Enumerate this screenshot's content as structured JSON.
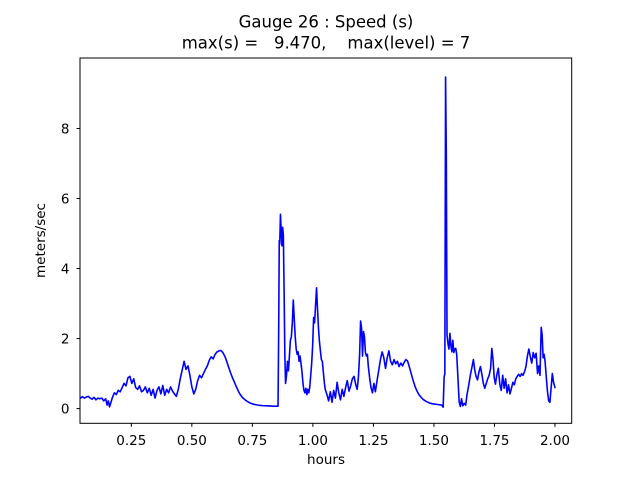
{
  "figure": {
    "title": "Gauge 26 : Speed (s)",
    "subtitle": "max(s) =   9.470,    max(level) = 7",
    "max_s": "9.470",
    "max_level": "7"
  },
  "chart_data": {
    "type": "line",
    "title": "Gauge 26 : Speed (s)",
    "subtitle": "max(s) =   9.470,    max(level) = 7",
    "xlabel": "hours",
    "ylabel": "meters/sec",
    "legend": "none",
    "grid": false,
    "line_color": "#0000ff",
    "line_width": 1.6,
    "xlim": [
      0.038,
      2.069
    ],
    "ylim": [
      -0.42,
      10.014
    ],
    "x_tick_values": [
      0.25,
      0.5,
      0.75,
      1.0,
      1.25,
      1.5,
      1.75,
      2.0
    ],
    "x_tick_labels": [
      "0.25",
      "0.50",
      "0.75",
      "1.00",
      "1.25",
      "1.50",
      "1.75",
      "2.00"
    ],
    "y_tick_values": [
      0,
      2,
      4,
      6,
      8
    ],
    "y_tick_labels": [
      "0",
      "2",
      "4",
      "6",
      "8"
    ],
    "series": [
      {
        "name": "speed",
        "points": [
          [
            0.04,
            0.3
          ],
          [
            0.048,
            0.34
          ],
          [
            0.056,
            0.3
          ],
          [
            0.064,
            0.33
          ],
          [
            0.072,
            0.35
          ],
          [
            0.08,
            0.3
          ],
          [
            0.088,
            0.27
          ],
          [
            0.096,
            0.32
          ],
          [
            0.104,
            0.25
          ],
          [
            0.112,
            0.3
          ],
          [
            0.12,
            0.28
          ],
          [
            0.128,
            0.3
          ],
          [
            0.136,
            0.22
          ],
          [
            0.144,
            0.28
          ],
          [
            0.15,
            0.1
          ],
          [
            0.155,
            0.22
          ],
          [
            0.16,
            0.05
          ],
          [
            0.166,
            0.18
          ],
          [
            0.172,
            0.32
          ],
          [
            0.18,
            0.45
          ],
          [
            0.188,
            0.4
          ],
          [
            0.196,
            0.52
          ],
          [
            0.204,
            0.48
          ],
          [
            0.212,
            0.6
          ],
          [
            0.22,
            0.72
          ],
          [
            0.228,
            0.65
          ],
          [
            0.236,
            0.88
          ],
          [
            0.244,
            0.92
          ],
          [
            0.252,
            0.72
          ],
          [
            0.26,
            0.85
          ],
          [
            0.268,
            0.6
          ],
          [
            0.276,
            0.55
          ],
          [
            0.284,
            0.65
          ],
          [
            0.292,
            0.48
          ],
          [
            0.3,
            0.52
          ],
          [
            0.308,
            0.62
          ],
          [
            0.316,
            0.45
          ],
          [
            0.324,
            0.58
          ],
          [
            0.332,
            0.38
          ],
          [
            0.34,
            0.55
          ],
          [
            0.348,
            0.3
          ],
          [
            0.356,
            0.52
          ],
          [
            0.364,
            0.62
          ],
          [
            0.372,
            0.42
          ],
          [
            0.38,
            0.66
          ],
          [
            0.388,
            0.38
          ],
          [
            0.396,
            0.55
          ],
          [
            0.404,
            0.45
          ],
          [
            0.412,
            0.62
          ],
          [
            0.42,
            0.5
          ],
          [
            0.428,
            0.42
          ],
          [
            0.436,
            0.35
          ],
          [
            0.444,
            0.55
          ],
          [
            0.452,
            0.85
          ],
          [
            0.46,
            1.1
          ],
          [
            0.468,
            1.35
          ],
          [
            0.476,
            1.12
          ],
          [
            0.484,
            1.22
          ],
          [
            0.492,
            0.95
          ],
          [
            0.5,
            0.62
          ],
          [
            0.508,
            0.42
          ],
          [
            0.516,
            0.55
          ],
          [
            0.524,
            0.8
          ],
          [
            0.532,
            0.95
          ],
          [
            0.54,
            0.88
          ],
          [
            0.548,
            1.0
          ],
          [
            0.556,
            1.12
          ],
          [
            0.564,
            1.22
          ],
          [
            0.572,
            1.38
          ],
          [
            0.58,
            1.48
          ],
          [
            0.588,
            1.42
          ],
          [
            0.596,
            1.55
          ],
          [
            0.604,
            1.62
          ],
          [
            0.612,
            1.65
          ],
          [
            0.62,
            1.66
          ],
          [
            0.628,
            1.6
          ],
          [
            0.636,
            1.5
          ],
          [
            0.644,
            1.35
          ],
          [
            0.652,
            1.18
          ],
          [
            0.66,
            1.02
          ],
          [
            0.668,
            0.88
          ],
          [
            0.676,
            0.75
          ],
          [
            0.684,
            0.62
          ],
          [
            0.692,
            0.5
          ],
          [
            0.7,
            0.4
          ],
          [
            0.71,
            0.31
          ],
          [
            0.72,
            0.25
          ],
          [
            0.73,
            0.2
          ],
          [
            0.74,
            0.16
          ],
          [
            0.752,
            0.13
          ],
          [
            0.764,
            0.11
          ],
          [
            0.778,
            0.095
          ],
          [
            0.792,
            0.085
          ],
          [
            0.806,
            0.08
          ],
          [
            0.82,
            0.075
          ],
          [
            0.834,
            0.07
          ],
          [
            0.848,
            0.07
          ],
          [
            0.856,
            0.07
          ],
          [
            0.859,
            2.5
          ],
          [
            0.861,
            4.8
          ],
          [
            0.863,
            4.7
          ],
          [
            0.866,
            5.55
          ],
          [
            0.869,
            5.1
          ],
          [
            0.872,
            4.65
          ],
          [
            0.875,
            5.18
          ],
          [
            0.878,
            4.95
          ],
          [
            0.881,
            3.4
          ],
          [
            0.884,
            1.6
          ],
          [
            0.887,
            0.72
          ],
          [
            0.891,
            0.95
          ],
          [
            0.895,
            1.35
          ],
          [
            0.899,
            1.08
          ],
          [
            0.903,
            1.5
          ],
          [
            0.907,
            1.95
          ],
          [
            0.911,
            2.05
          ],
          [
            0.915,
            2.45
          ],
          [
            0.919,
            3.1
          ],
          [
            0.923,
            2.55
          ],
          [
            0.927,
            2.05
          ],
          [
            0.931,
            1.7
          ],
          [
            0.935,
            1.55
          ],
          [
            0.939,
            1.62
          ],
          [
            0.943,
            1.35
          ],
          [
            0.947,
            1.5
          ],
          [
            0.951,
            1.28
          ],
          [
            0.955,
            1.05
          ],
          [
            0.959,
            0.72
          ],
          [
            0.963,
            0.52
          ],
          [
            0.967,
            0.45
          ],
          [
            0.971,
            0.58
          ],
          [
            0.975,
            0.4
          ],
          [
            0.979,
            0.55
          ],
          [
            0.983,
            0.45
          ],
          [
            0.987,
            0.62
          ],
          [
            0.991,
            0.95
          ],
          [
            0.995,
            1.3
          ],
          [
            0.999,
            1.8
          ],
          [
            1.003,
            2.6
          ],
          [
            1.007,
            2.45
          ],
          [
            1.011,
            2.95
          ],
          [
            1.015,
            3.45
          ],
          [
            1.019,
            2.85
          ],
          [
            1.023,
            2.3
          ],
          [
            1.027,
            1.92
          ],
          [
            1.031,
            1.65
          ],
          [
            1.035,
            1.4
          ],
          [
            1.039,
            1.35
          ],
          [
            1.043,
            1.05
          ],
          [
            1.047,
            0.75
          ],
          [
            1.051,
            0.55
          ],
          [
            1.058,
            0.4
          ],
          [
            1.065,
            0.22
          ],
          [
            1.072,
            0.48
          ],
          [
            1.079,
            0.18
          ],
          [
            1.086,
            0.52
          ],
          [
            1.093,
            0.3
          ],
          [
            1.1,
            0.75
          ],
          [
            1.107,
            0.45
          ],
          [
            1.114,
            0.25
          ],
          [
            1.121,
            0.55
          ],
          [
            1.128,
            0.35
          ],
          [
            1.135,
            0.6
          ],
          [
            1.142,
            0.8
          ],
          [
            1.149,
            0.5
          ],
          [
            1.156,
            0.65
          ],
          [
            1.163,
            0.85
          ],
          [
            1.17,
            0.92
          ],
          [
            1.177,
            0.68
          ],
          [
            1.183,
            0.55
          ],
          [
            1.188,
            0.9
          ],
          [
            1.193,
            1.55
          ],
          [
            1.197,
            2.5
          ],
          [
            1.201,
            2.3
          ],
          [
            1.205,
            1.5
          ],
          [
            1.209,
            2.2
          ],
          [
            1.213,
            2.05
          ],
          [
            1.217,
            1.6
          ],
          [
            1.221,
            1.5
          ],
          [
            1.225,
            1.55
          ],
          [
            1.229,
            1.2
          ],
          [
            1.234,
            0.9
          ],
          [
            1.24,
            0.6
          ],
          [
            1.246,
            0.45
          ],
          [
            1.252,
            0.72
          ],
          [
            1.258,
            0.48
          ],
          [
            1.265,
            0.8
          ],
          [
            1.272,
            1.1
          ],
          [
            1.279,
            1.4
          ],
          [
            1.286,
            1.62
          ],
          [
            1.293,
            1.45
          ],
          [
            1.3,
            1.15
          ],
          [
            1.307,
            1.45
          ],
          [
            1.314,
            1.65
          ],
          [
            1.321,
            1.35
          ],
          [
            1.328,
            1.25
          ],
          [
            1.335,
            1.4
          ],
          [
            1.342,
            1.28
          ],
          [
            1.349,
            1.35
          ],
          [
            1.356,
            1.2
          ],
          [
            1.363,
            1.3
          ],
          [
            1.37,
            1.22
          ],
          [
            1.377,
            1.32
          ],
          [
            1.384,
            1.4
          ],
          [
            1.391,
            1.36
          ],
          [
            1.398,
            1.2
          ],
          [
            1.406,
            1.0
          ],
          [
            1.414,
            0.8
          ],
          [
            1.422,
            0.63
          ],
          [
            1.43,
            0.5
          ],
          [
            1.438,
            0.4
          ],
          [
            1.446,
            0.33
          ],
          [
            1.454,
            0.27
          ],
          [
            1.462,
            0.23
          ],
          [
            1.472,
            0.19
          ],
          [
            1.482,
            0.16
          ],
          [
            1.492,
            0.14
          ],
          [
            1.502,
            0.13
          ],
          [
            1.512,
            0.12
          ],
          [
            1.522,
            0.11
          ],
          [
            1.532,
            0.1
          ],
          [
            1.538,
            0.04
          ],
          [
            1.542,
            0.9
          ],
          [
            1.545,
            1.0
          ],
          [
            1.548,
            9.47
          ],
          [
            1.551,
            7.3
          ],
          [
            1.554,
            2.1
          ],
          [
            1.558,
            1.85
          ],
          [
            1.562,
            1.7
          ],
          [
            1.566,
            2.15
          ],
          [
            1.57,
            1.8
          ],
          [
            1.574,
            1.62
          ],
          [
            1.578,
            1.95
          ],
          [
            1.582,
            1.6
          ],
          [
            1.586,
            1.7
          ],
          [
            1.59,
            1.72
          ],
          [
            1.594,
            1.55
          ],
          [
            1.599,
            0.9
          ],
          [
            1.604,
            0.2
          ],
          [
            1.609,
            0.06
          ],
          [
            1.614,
            0.28
          ],
          [
            1.619,
            0.08
          ],
          [
            1.625,
            0.15
          ],
          [
            1.631,
            0.1
          ],
          [
            1.637,
            0.42
          ],
          [
            1.644,
            0.68
          ],
          [
            1.651,
            0.98
          ],
          [
            1.658,
            1.22
          ],
          [
            1.663,
            1.4
          ],
          [
            1.668,
            1.12
          ],
          [
            1.674,
            0.92
          ],
          [
            1.68,
            0.82
          ],
          [
            1.686,
            1.05
          ],
          [
            1.692,
            1.2
          ],
          [
            1.698,
            0.98
          ],
          [
            1.704,
            0.72
          ],
          [
            1.71,
            0.58
          ],
          [
            1.716,
            0.72
          ],
          [
            1.722,
            0.85
          ],
          [
            1.728,
            0.95
          ],
          [
            1.734,
            1.15
          ],
          [
            1.739,
            1.72
          ],
          [
            1.744,
            1.4
          ],
          [
            1.749,
            0.88
          ],
          [
            1.754,
            0.7
          ],
          [
            1.76,
            0.98
          ],
          [
            1.766,
            1.15
          ],
          [
            1.772,
            0.7
          ],
          [
            1.778,
            0.52
          ],
          [
            1.784,
            0.95
          ],
          [
            1.79,
            0.58
          ],
          [
            1.796,
            0.85
          ],
          [
            1.802,
            0.45
          ],
          [
            1.808,
            0.68
          ],
          [
            1.814,
            0.42
          ],
          [
            1.82,
            0.58
          ],
          [
            1.826,
            0.75
          ],
          [
            1.832,
            0.68
          ],
          [
            1.838,
            0.85
          ],
          [
            1.844,
            0.92
          ],
          [
            1.85,
            0.98
          ],
          [
            1.856,
            0.92
          ],
          [
            1.862,
            1.0
          ],
          [
            1.868,
            0.95
          ],
          [
            1.874,
            1.05
          ],
          [
            1.88,
            1.2
          ],
          [
            1.886,
            1.5
          ],
          [
            1.892,
            1.7
          ],
          [
            1.898,
            1.48
          ],
          [
            1.904,
            1.3
          ],
          [
            1.91,
            1.6
          ],
          [
            1.916,
            1.45
          ],
          [
            1.922,
            1.58
          ],
          [
            1.928,
            1.0
          ],
          [
            1.933,
            1.22
          ],
          [
            1.938,
            0.95
          ],
          [
            1.943,
            2.32
          ],
          [
            1.947,
            2.1
          ],
          [
            1.951,
            1.45
          ],
          [
            1.955,
            1.55
          ],
          [
            1.959,
            1.35
          ],
          [
            1.964,
            0.9
          ],
          [
            1.969,
            0.48
          ],
          [
            1.974,
            0.22
          ],
          [
            1.979,
            0.18
          ],
          [
            1.984,
            0.6
          ],
          [
            1.989,
            1.0
          ],
          [
            1.994,
            0.75
          ],
          [
            2.0,
            0.6
          ]
        ]
      }
    ]
  }
}
